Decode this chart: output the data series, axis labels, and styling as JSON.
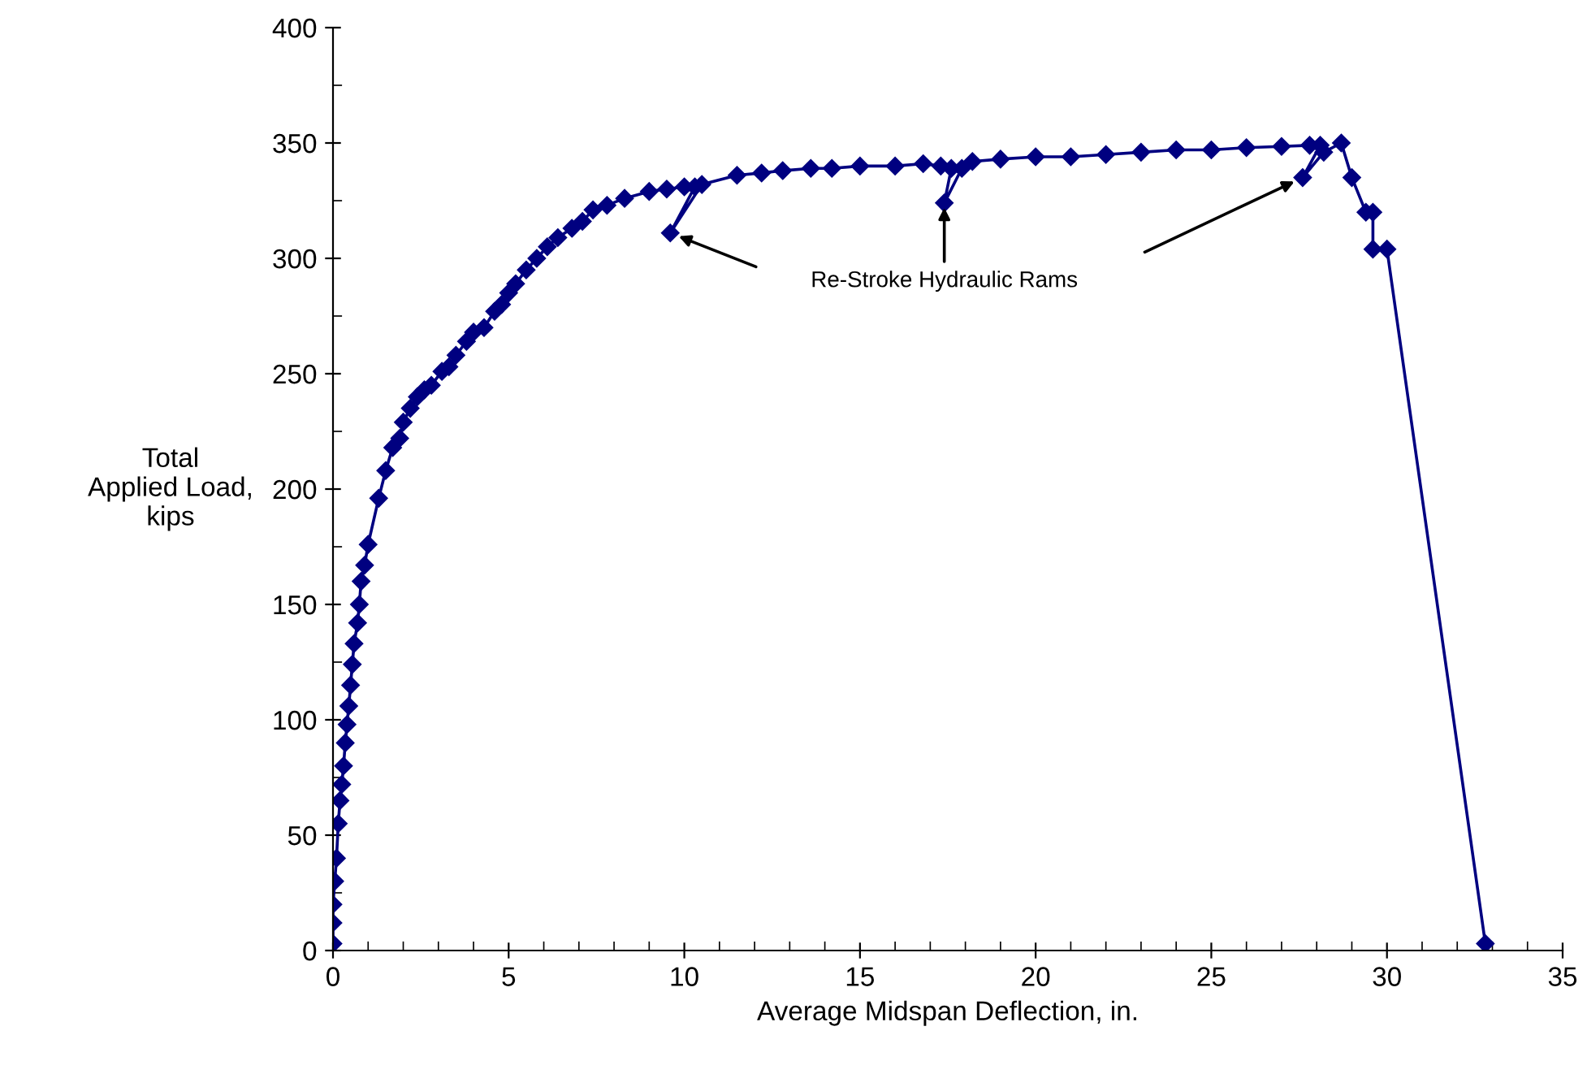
{
  "chart_data": {
    "type": "line",
    "xlabel": "Average Midspan Deflection, in.",
    "ylabel": "Total\nApplied Load,\nkips",
    "xlim": [
      0,
      35
    ],
    "xticks": [
      0,
      5,
      10,
      15,
      20,
      25,
      30,
      35
    ],
    "ylim": [
      0,
      400
    ],
    "yticks": [
      0,
      50,
      100,
      150,
      200,
      250,
      300,
      350,
      400
    ],
    "grid": false,
    "marker": "diamond",
    "line_style": "solid",
    "series": [
      {
        "color": "#000080",
        "x": [
          0,
          0,
          0,
          0.05,
          0.1,
          0.15,
          0.2,
          0.25,
          0.3,
          0.35,
          0.4,
          0.45,
          0.5,
          0.55,
          0.6,
          0.7,
          0.75,
          0.8,
          0.9,
          1.0,
          1.3,
          1.5,
          1.7,
          1.9,
          2.0,
          2.2,
          2.4,
          2.6,
          2.8,
          3.1,
          3.3,
          3.5,
          3.8,
          4.0,
          4.3,
          4.6,
          4.8,
          5.0,
          5.2,
          5.5,
          5.8,
          6.1,
          6.4,
          6.8,
          7.1,
          7.4,
          7.8,
          8.3,
          9.0,
          9.5,
          10.0,
          10.3,
          9.6,
          10.5,
          11.5,
          12.2,
          12.8,
          13.6,
          14.2,
          15,
          16,
          16.8,
          17.3,
          17.6,
          17.4,
          17.9,
          18.2,
          19,
          20,
          21,
          22,
          23,
          24,
          25,
          26,
          27,
          27.8,
          28.1,
          27.6,
          28.2,
          28.7,
          29.0,
          29.4,
          29.6,
          29.6,
          30.0,
          32.8
        ],
        "values": [
          3,
          12,
          20,
          30,
          40,
          55,
          65,
          72,
          80,
          90,
          98,
          106,
          115,
          124,
          133,
          142,
          150,
          160,
          167,
          176,
          196,
          208,
          218,
          222,
          229,
          235,
          240,
          243,
          245,
          251,
          253,
          258,
          264,
          268,
          270,
          277,
          280,
          285,
          289,
          295,
          300,
          305,
          309,
          313,
          316,
          321,
          323,
          326,
          329,
          330,
          331,
          331,
          311,
          332,
          336,
          337,
          338,
          339,
          339,
          340,
          340,
          341,
          340,
          339,
          324,
          339,
          342,
          343,
          344,
          344,
          345,
          346,
          347,
          347,
          348,
          348.5,
          349,
          349,
          335,
          346,
          350,
          335,
          320,
          320,
          304,
          304,
          3
        ]
      }
    ],
    "annotations": [
      {
        "text": "Re-Stroke Hydraulic Rams",
        "x": 17.4,
        "y": 324
      }
    ]
  }
}
